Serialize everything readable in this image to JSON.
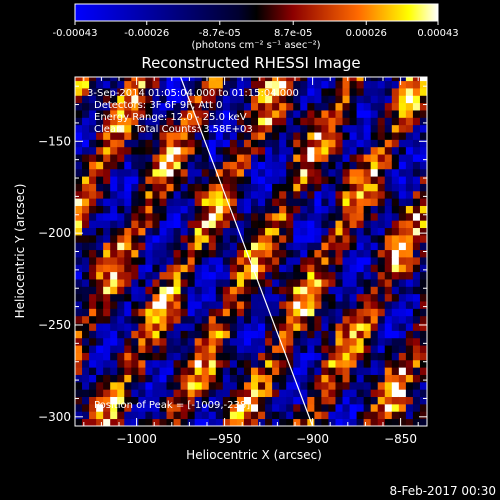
{
  "colorbar": {
    "tick_labels": [
      "-0.00043",
      "-0.00026",
      "-8.7e-05",
      "8.7e-05",
      "0.00026",
      "0.00043"
    ],
    "tick_values": [
      -0.00043,
      -0.00026,
      -8.7e-05,
      8.7e-05,
      0.00026,
      0.00043
    ],
    "range": [
      -0.00043,
      0.00043
    ],
    "unit_label": "(photons cm⁻² s⁻¹ asec⁻²)"
  },
  "title": "Reconstructed RHESSI Image",
  "annotations": {
    "time": "3-Sep-2014 01:05:04.000 to 01:15:04.000",
    "detectors": "Detectors: 3F 6F 9F, Att 0",
    "energy": "Energy Range: 12.0 - 25.0 keV",
    "clean": "Clean    Total Counts: 3.58E+03",
    "peak": "Position of Peak = [-1009,-238]"
  },
  "footer": {
    "date": "8-Feb-2017 00:30"
  },
  "colors": {
    "negative_low": "#00008c",
    "negative_high": "#0000ff",
    "positive_low": "#8c0000",
    "positive_mid": "#ff6a00",
    "positive_high": "#ffff00",
    "positive_max": "#ffffff"
  },
  "chart_data": {
    "type": "heatmap",
    "title": "Reconstructed RHESSI Image",
    "xlabel": "Heliocentric X (arcsec)",
    "ylabel": "Heliocentric Y (arcsec)",
    "xlim": [
      -1035,
      -835
    ],
    "ylim": [
      -305,
      -115
    ],
    "xticks": [
      -1000,
      -950,
      -900,
      -850
    ],
    "yticks": [
      -300,
      -250,
      -200,
      -150
    ],
    "xtick_labels": [
      "−1000",
      "−950",
      "−900",
      "−850"
    ],
    "ytick_labels": [
      "−300",
      "−250",
      "−200",
      "−150"
    ],
    "grid": false,
    "limb_line": [
      [
        -975,
        -115
      ],
      [
        -900,
        -305
      ]
    ],
    "peak_position": [
      -1009,
      -238
    ],
    "cell_size_arcsec": 4
  }
}
